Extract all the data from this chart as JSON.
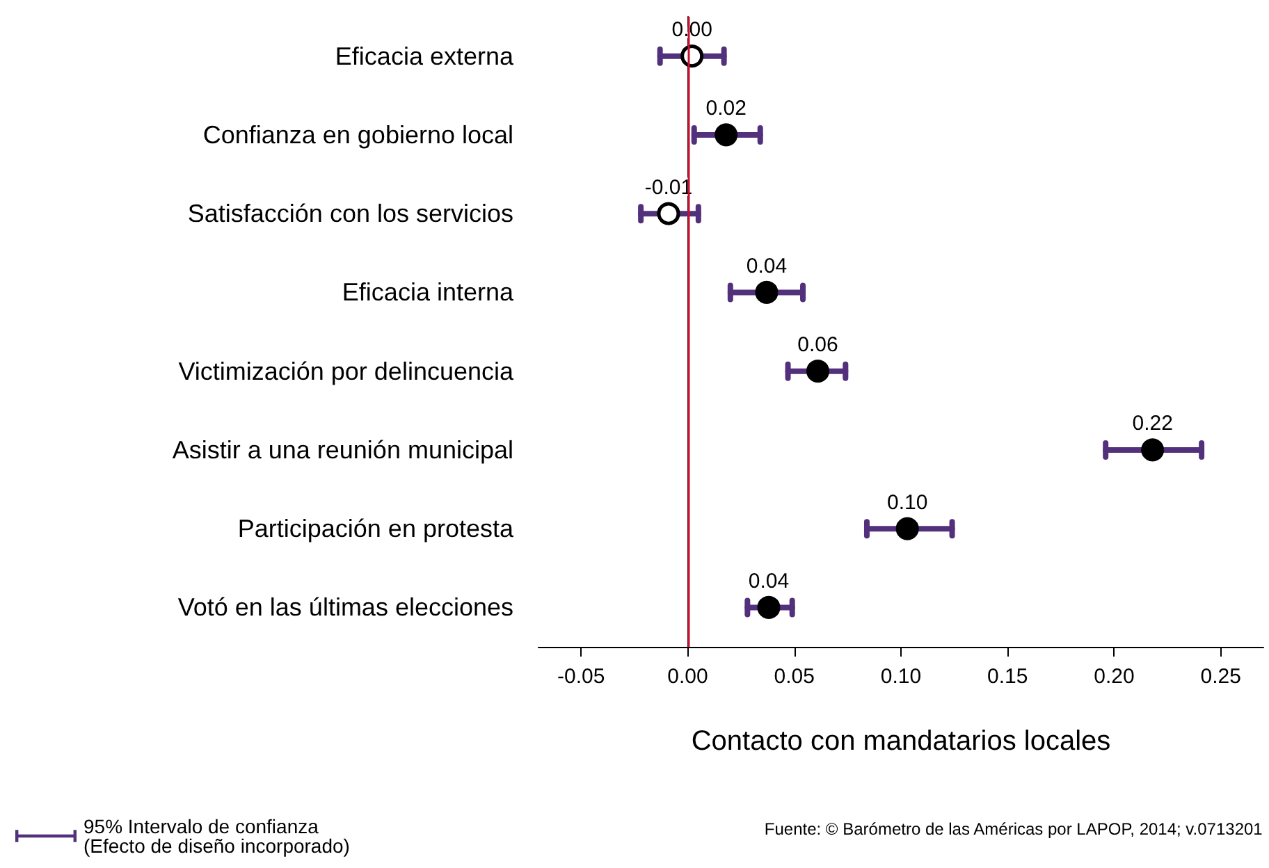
{
  "chart_data": {
    "type": "scatter",
    "orientation": "horizontal",
    "xlabel": "Contacto con mandatarios locales",
    "categories": [
      "Eficacia externa",
      "Confianza en gobierno local",
      "Satisfacción con los servicios",
      "Eficacia interna",
      "Victimización por delincuencia",
      "Asistir a una reunión municipal",
      "Participación en protesta",
      "Votó en las últimas elecciones"
    ],
    "series": [
      {
        "name": "95% Intervalo de confianza\n(Efecto de diseño incorporado)",
        "color": "#52307c",
        "colors": [
          "#ffffff",
          "#000000",
          "#ffffff",
          "#000000",
          "#000000",
          "#000000",
          "#000000",
          "#000000"
        ],
        "values": [
          0.002,
          0.018,
          -0.009,
          0.037,
          0.061,
          0.218,
          0.103,
          0.038
        ],
        "value_labels": [
          "0.00",
          "0.02",
          "-0.01",
          "0.04",
          "0.06",
          "0.22",
          "0.10",
          "0.04"
        ],
        "errors": [
          [
            -0.013,
            0.017
          ],
          [
            0.003,
            0.034
          ],
          [
            -0.022,
            0.005
          ],
          [
            0.02,
            0.054
          ],
          [
            0.047,
            0.074
          ],
          [
            0.196,
            0.241
          ],
          [
            0.084,
            0.124
          ],
          [
            0.028,
            0.049
          ]
        ]
      }
    ],
    "xlim": [
      -0.07,
      0.27
    ],
    "xticks": [
      {
        "value": -0.05,
        "label": "-0.05"
      },
      {
        "value": 0,
        "label": "0.00"
      },
      {
        "value": 0.05,
        "label": "0.05"
      },
      {
        "value": 0.1,
        "label": "0.10"
      },
      {
        "value": 0.15,
        "label": "0.15"
      },
      {
        "value": 0.2,
        "label": "0.20"
      },
      {
        "value": 0.25,
        "label": "0.25"
      }
    ],
    "ref_lines": [
      {
        "axis": "x",
        "value": 0,
        "color": "#c8102e"
      }
    ],
    "marker": "circle",
    "grid": false,
    "legend": "bottom left",
    "annotations": [
      "Fuente: © Barómetro de las Américas por LAPOP, 2014; v.0713201"
    ]
  }
}
